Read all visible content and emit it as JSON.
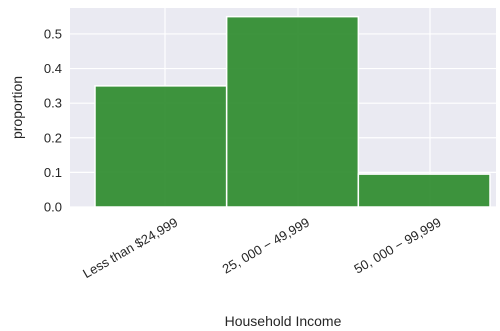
{
  "chart_data": {
    "type": "bar",
    "title": "",
    "xlabel": "Household Income",
    "ylabel": "proportion",
    "categories": [
      "Less than $24,999",
      "25, 000 − 49,999",
      "50, 000 − 99,999"
    ],
    "values": [
      0.35,
      0.55,
      0.095
    ],
    "ylim": [
      0,
      0.575
    ],
    "yticks": [
      0.0,
      0.1,
      0.2,
      0.3,
      0.4,
      0.5
    ],
    "ytick_labels": [
      "0.0",
      "0.1",
      "0.2",
      "0.3",
      "0.4",
      "0.5"
    ],
    "grid": true,
    "style": {
      "bar_color": "#2e8b2e",
      "bar_edge": "#ffffff",
      "plot_background": "#eaeaf2",
      "grid_color": "#ffffff"
    }
  }
}
